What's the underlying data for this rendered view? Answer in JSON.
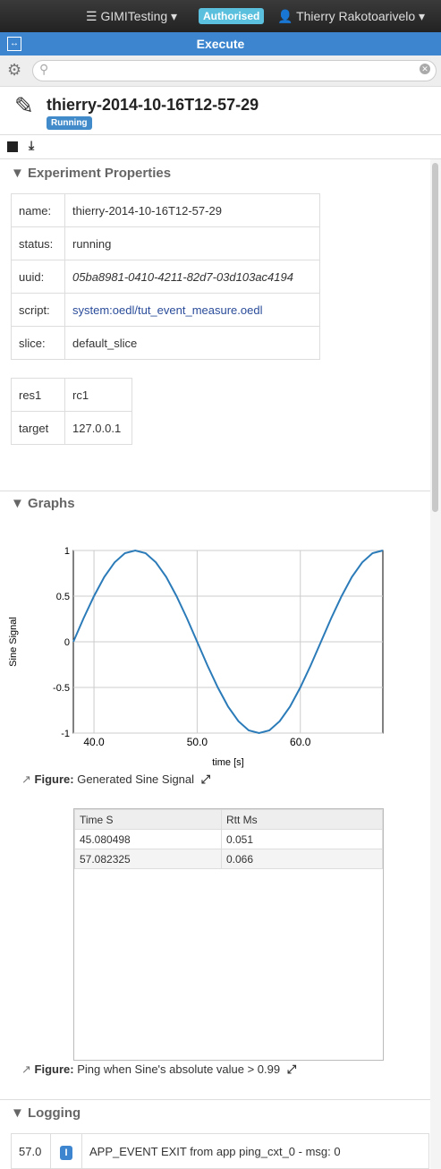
{
  "navbar": {
    "project": "GIMITesting",
    "badge": "Authorised",
    "user": "Thierry Rakotoarivelo"
  },
  "panel": {
    "title": "Execute"
  },
  "experiment": {
    "name": "thierry-2014-10-16T12-57-29",
    "state": "Running"
  },
  "properties": {
    "title": "Experiment Properties",
    "rows": [
      [
        "name:",
        "thierry-2014-10-16T12-57-29"
      ],
      [
        "status:",
        "running"
      ],
      [
        "uuid:",
        "05ba8981-0410-4211-82d7-03d103ac4194"
      ],
      [
        "script:",
        "system:oedl/tut_event_measure.oedl"
      ],
      [
        "slice:",
        "default_slice"
      ]
    ]
  },
  "resources": {
    "rows": [
      [
        "res1",
        "rc1"
      ],
      [
        "target",
        "127.0.0.1"
      ]
    ]
  },
  "graphs": {
    "title": "Graphs",
    "figure1": {
      "prefix": "Figure:",
      "caption": "Generated Sine Signal"
    },
    "table": {
      "headers": [
        "Time S",
        "Rtt Ms"
      ],
      "rows": [
        [
          "45.080498",
          "0.051"
        ],
        [
          "57.082325",
          "0.066"
        ]
      ]
    },
    "figure2": {
      "prefix": "Figure:",
      "caption": "Ping when Sine's absolute value > 0.99"
    }
  },
  "chart_data": {
    "type": "line",
    "x_label": "time [s]",
    "y_label": "Sine Signal",
    "color": "#2b7bb9",
    "grid": true,
    "x": [
      38,
      39,
      40,
      41,
      42,
      43,
      44,
      45,
      46,
      47,
      48,
      49,
      50,
      51,
      52,
      53,
      54,
      55,
      56,
      57,
      58,
      59,
      60,
      61,
      62,
      63,
      64,
      65,
      66,
      67,
      68
    ],
    "values": [
      0,
      0.26,
      0.5,
      0.71,
      0.87,
      0.97,
      1,
      0.97,
      0.87,
      0.71,
      0.5,
      0.26,
      0,
      -0.26,
      -0.5,
      -0.71,
      -0.87,
      -0.97,
      -1,
      -0.97,
      -0.87,
      -0.71,
      -0.5,
      -0.26,
      0,
      0.26,
      0.5,
      0.71,
      0.87,
      0.97,
      1
    ],
    "xlim": [
      38,
      68
    ],
    "ylim": [
      -1,
      1
    ],
    "xticks": [
      {
        "value": 40,
        "label": "40.0"
      },
      {
        "value": 50,
        "label": "50.0"
      },
      {
        "value": 60,
        "label": "60.0"
      }
    ],
    "yticks": [
      -1,
      -0.5,
      0,
      0.5,
      1
    ]
  },
  "logging": {
    "title": "Logging",
    "rows": [
      {
        "time": "57.0",
        "level": "I",
        "message": "APP_EVENT EXIT from app ping_cxt_0 - msg: 0"
      }
    ]
  }
}
